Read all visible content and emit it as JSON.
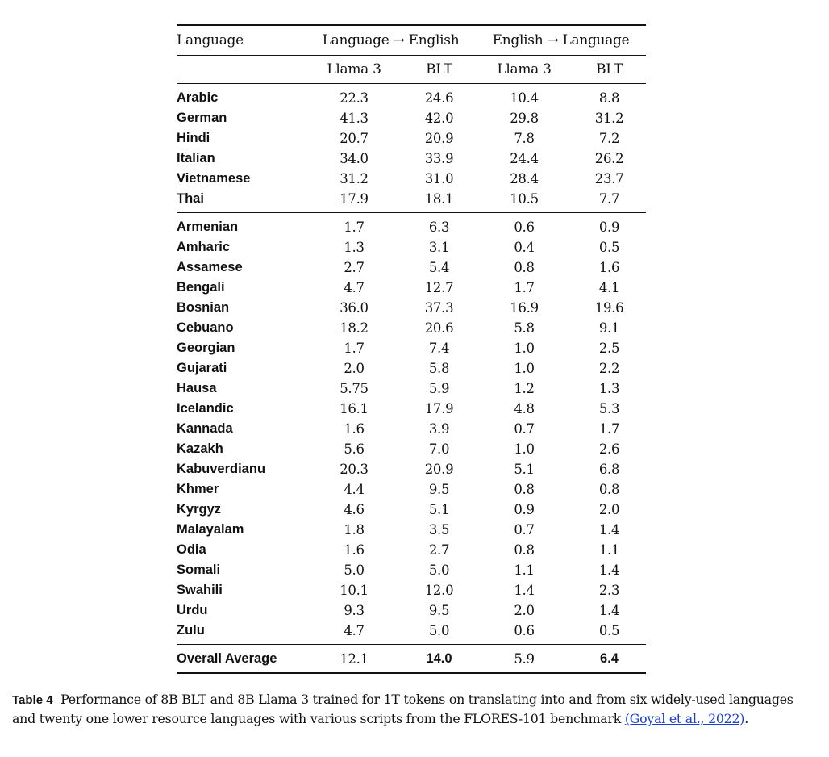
{
  "table": {
    "header": {
      "language_label": "Language",
      "group_to_english": "Language → English",
      "group_from_english": "English → Language",
      "sub_llama_1": "Llama 3",
      "sub_blt_1": "BLT",
      "sub_llama_2": "Llama 3",
      "sub_blt_2": "BLT"
    },
    "high_resource": [
      {
        "language": "Arabic",
        "to_en_llama": "22.3",
        "to_en_blt": "24.6",
        "from_en_llama": "10.4",
        "from_en_blt": "8.8"
      },
      {
        "language": "German",
        "to_en_llama": "41.3",
        "to_en_blt": "42.0",
        "from_en_llama": "29.8",
        "from_en_blt": "31.2"
      },
      {
        "language": "Hindi",
        "to_en_llama": "20.7",
        "to_en_blt": "20.9",
        "from_en_llama": "7.8",
        "from_en_blt": "7.2"
      },
      {
        "language": "Italian",
        "to_en_llama": "34.0",
        "to_en_blt": "33.9",
        "from_en_llama": "24.4",
        "from_en_blt": "26.2"
      },
      {
        "language": "Vietnamese",
        "to_en_llama": "31.2",
        "to_en_blt": "31.0",
        "from_en_llama": "28.4",
        "from_en_blt": "23.7"
      },
      {
        "language": "Thai",
        "to_en_llama": "17.9",
        "to_en_blt": "18.1",
        "from_en_llama": "10.5",
        "from_en_blt": "7.7"
      }
    ],
    "low_resource": [
      {
        "language": "Armenian",
        "to_en_llama": "1.7",
        "to_en_blt": "6.3",
        "from_en_llama": "0.6",
        "from_en_blt": "0.9"
      },
      {
        "language": "Amharic",
        "to_en_llama": "1.3",
        "to_en_blt": "3.1",
        "from_en_llama": "0.4",
        "from_en_blt": "0.5"
      },
      {
        "language": "Assamese",
        "to_en_llama": "2.7",
        "to_en_blt": "5.4",
        "from_en_llama": "0.8",
        "from_en_blt": "1.6"
      },
      {
        "language": "Bengali",
        "to_en_llama": "4.7",
        "to_en_blt": "12.7",
        "from_en_llama": "1.7",
        "from_en_blt": "4.1"
      },
      {
        "language": "Bosnian",
        "to_en_llama": "36.0",
        "to_en_blt": "37.3",
        "from_en_llama": "16.9",
        "from_en_blt": "19.6"
      },
      {
        "language": "Cebuano",
        "to_en_llama": "18.2",
        "to_en_blt": "20.6",
        "from_en_llama": "5.8",
        "from_en_blt": "9.1"
      },
      {
        "language": "Georgian",
        "to_en_llama": "1.7",
        "to_en_blt": "7.4",
        "from_en_llama": "1.0",
        "from_en_blt": "2.5"
      },
      {
        "language": "Gujarati",
        "to_en_llama": "2.0",
        "to_en_blt": "5.8",
        "from_en_llama": "1.0",
        "from_en_blt": "2.2"
      },
      {
        "language": "Hausa",
        "to_en_llama": "5.75",
        "to_en_blt": "5.9",
        "from_en_llama": "1.2",
        "from_en_blt": "1.3"
      },
      {
        "language": "Icelandic",
        "to_en_llama": "16.1",
        "to_en_blt": "17.9",
        "from_en_llama": "4.8",
        "from_en_blt": "5.3"
      },
      {
        "language": "Kannada",
        "to_en_llama": "1.6",
        "to_en_blt": "3.9",
        "from_en_llama": "0.7",
        "from_en_blt": "1.7"
      },
      {
        "language": "Kazakh",
        "to_en_llama": "5.6",
        "to_en_blt": "7.0",
        "from_en_llama": "1.0",
        "from_en_blt": "2.6"
      },
      {
        "language": "Kabuverdianu",
        "to_en_llama": "20.3",
        "to_en_blt": "20.9",
        "from_en_llama": "5.1",
        "from_en_blt": "6.8"
      },
      {
        "language": "Khmer",
        "to_en_llama": "4.4",
        "to_en_blt": "9.5",
        "from_en_llama": "0.8",
        "from_en_blt": "0.8"
      },
      {
        "language": "Kyrgyz",
        "to_en_llama": "4.6",
        "to_en_blt": "5.1",
        "from_en_llama": "0.9",
        "from_en_blt": "2.0"
      },
      {
        "language": "Malayalam",
        "to_en_llama": "1.8",
        "to_en_blt": "3.5",
        "from_en_llama": "0.7",
        "from_en_blt": "1.4"
      },
      {
        "language": "Odia",
        "to_en_llama": "1.6",
        "to_en_blt": "2.7",
        "from_en_llama": "0.8",
        "from_en_blt": "1.1"
      },
      {
        "language": "Somali",
        "to_en_llama": "5.0",
        "to_en_blt": "5.0",
        "from_en_llama": "1.1",
        "from_en_blt": "1.4"
      },
      {
        "language": "Swahili",
        "to_en_llama": "10.1",
        "to_en_blt": "12.0",
        "from_en_llama": "1.4",
        "from_en_blt": "2.3"
      },
      {
        "language": "Urdu",
        "to_en_llama": "9.3",
        "to_en_blt": "9.5",
        "from_en_llama": "2.0",
        "from_en_blt": "1.4"
      },
      {
        "language": "Zulu",
        "to_en_llama": "4.7",
        "to_en_blt": "5.0",
        "from_en_llama": "0.6",
        "from_en_blt": "0.5"
      }
    ],
    "average": {
      "language": "Overall Average",
      "to_en_llama": "12.1",
      "to_en_blt": "14.0",
      "from_en_llama": "5.9",
      "from_en_blt": "6.4"
    }
  },
  "caption": {
    "label": "Table 4",
    "text": "Performance of 8B BLT and 8B Llama 3 trained for 1T tokens on translating into and from six widely-used languages and twenty one lower resource languages with various scripts from the FLORES-101 benchmark ",
    "citation": "(Goyal et al., 2022)",
    "end": "."
  }
}
